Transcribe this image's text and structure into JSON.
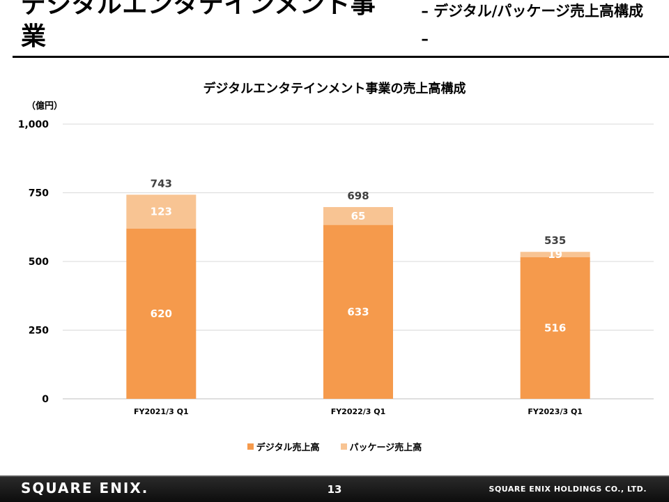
{
  "header": {
    "title": "デジタルエンタテインメント事業",
    "subtitle": "– デジタル/パッケージ売上高構成 –"
  },
  "footer": {
    "logo": "SQUARE ENIX.",
    "page_number": "13",
    "company": "SQUARE ENIX HOLDINGS CO., LTD."
  },
  "colors": {
    "digital": "#f59a4c",
    "package": "#f8c493",
    "grid": "#d9d9d9",
    "text": "#000000"
  },
  "chart_data": {
    "type": "bar",
    "stacked": true,
    "title": "デジタルエンタテインメント事業の売上高構成",
    "unit": "（億円）",
    "categories": [
      "FY2021/3 Q1",
      "FY2022/3 Q1",
      "FY2023/3 Q1"
    ],
    "series": [
      {
        "name": "デジタル売上高",
        "values": [
          620,
          633,
          516
        ]
      },
      {
        "name": "パッケージ売上高",
        "values": [
          123,
          65,
          19
        ]
      }
    ],
    "totals": [
      743,
      698,
      535
    ],
    "y_ticks": [
      "0",
      "250",
      "500",
      "750",
      "1,000"
    ],
    "ylim": [
      0,
      1000
    ],
    "grid": true,
    "legend": "bottom"
  }
}
